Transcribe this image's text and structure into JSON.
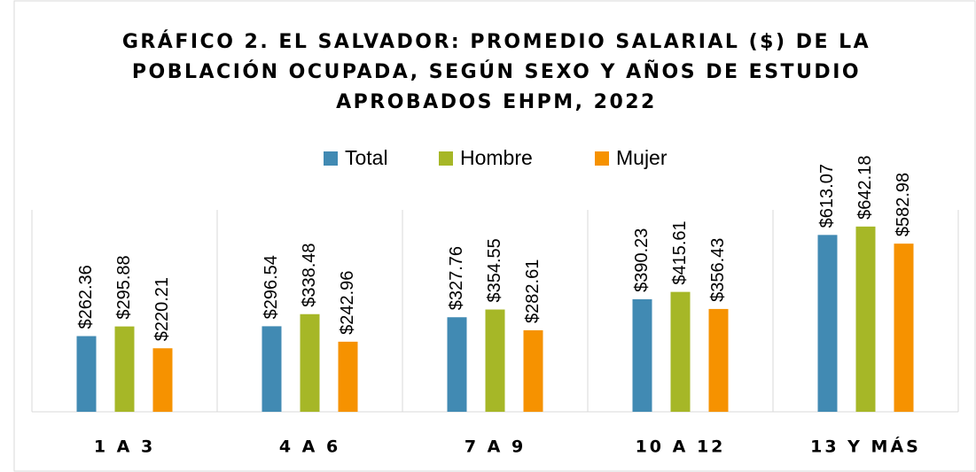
{
  "chart_data": {
    "type": "bar",
    "title": [
      "GRÁFICO 2. EL SALVADOR: PROMEDIO SALARIAL ($) DE LA",
      "POBLACIÓN OCUPADA, SEGÚN SEXO Y AÑOS DE ESTUDIO",
      "APROBADOS EHPM, 2022"
    ],
    "categories": [
      "1 A 3",
      "4 A 6",
      "7 A 9",
      "10 A 12",
      "13 Y MÁS"
    ],
    "series": [
      {
        "name": "Total",
        "color": "#418ab3",
        "values": [
          262.36,
          296.54,
          327.76,
          390.23,
          613.07
        ],
        "value_labels": [
          "$262.36",
          "$296.54",
          "$327.76",
          "$390.23",
          "$613.07"
        ]
      },
      {
        "name": "Hombre",
        "color": "#a6b727",
        "values": [
          295.88,
          338.48,
          354.55,
          415.61,
          642.18
        ],
        "value_labels": [
          "$295.88",
          "$338.48",
          "$354.55",
          "$415.61",
          "$642.18"
        ]
      },
      {
        "name": "Mujer",
        "color": "#f69200",
        "values": [
          220.21,
          242.96,
          282.61,
          356.43,
          582.98
        ],
        "value_labels": [
          "$220.21",
          "$242.96",
          "$282.61",
          "$356.43",
          "$582.98"
        ]
      }
    ],
    "ylim": [
      0,
      700
    ],
    "legend": "top"
  }
}
